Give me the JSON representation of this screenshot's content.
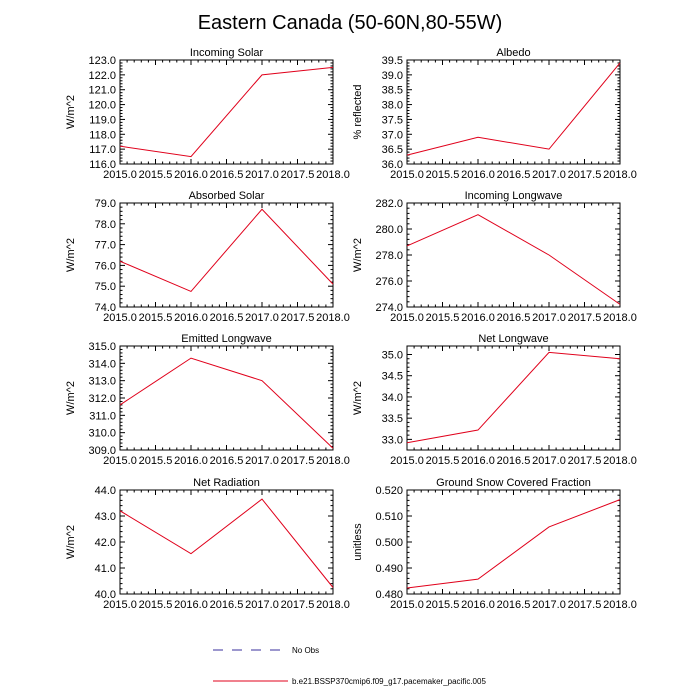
{
  "figure": {
    "title": "Eastern Canada (50-60N,80-55W)",
    "line_color": "#e0001b",
    "obs_color": "#3a2f9e",
    "axis_color": "#000000"
  },
  "legend": {
    "obs_label": "No Obs",
    "model_label": "b.e21.BSSP370cmip6.f09_g17.pacemaker_pacific.005"
  },
  "chart_data": [
    {
      "type": "line",
      "title": "Incoming Solar",
      "xlabel": "",
      "ylabel": "W/m^2",
      "x": [
        2015,
        2016,
        2017,
        2018
      ],
      "xlim": [
        2015,
        2018
      ],
      "xticks": [
        "2015.0",
        "2015.5",
        "2016.0",
        "2016.5",
        "2017.0",
        "2017.5",
        "2018.0"
      ],
      "ylim": [
        116,
        123
      ],
      "yticks": [
        "116.0",
        "117.0",
        "118.0",
        "119.0",
        "120.0",
        "121.0",
        "122.0",
        "123.0"
      ],
      "series": [
        {
          "name": "b.e21.BSSP370cmip6.f09_g17.pacemaker_pacific.005",
          "values": [
            117.2,
            116.5,
            122.0,
            122.5
          ]
        }
      ]
    },
    {
      "type": "line",
      "title": "Albedo",
      "xlabel": "",
      "ylabel": "% reflected",
      "x": [
        2015,
        2016,
        2017,
        2018
      ],
      "xlim": [
        2015,
        2018
      ],
      "xticks": [
        "2015.0",
        "2015.5",
        "2016.0",
        "2016.5",
        "2017.0",
        "2017.5",
        "2018.0"
      ],
      "ylim": [
        36,
        39.5
      ],
      "yticks": [
        "36.0",
        "36.5",
        "37.0",
        "37.5",
        "38.0",
        "38.5",
        "39.0",
        "39.5"
      ],
      "series": [
        {
          "name": "b.e21.BSSP370cmip6.f09_g17.pacemaker_pacific.005",
          "values": [
            36.3,
            36.9,
            36.5,
            39.4
          ]
        }
      ]
    },
    {
      "type": "line",
      "title": "Absorbed Solar",
      "xlabel": "",
      "ylabel": "W/m^2",
      "x": [
        2015,
        2016,
        2017,
        2018
      ],
      "xlim": [
        2015,
        2018
      ],
      "xticks": [
        "2015.0",
        "2015.5",
        "2016.0",
        "2016.5",
        "2017.0",
        "2017.5",
        "2018.0"
      ],
      "ylim": [
        74,
        79
      ],
      "yticks": [
        "74.0",
        "75.0",
        "76.0",
        "77.0",
        "78.0",
        "79.0"
      ],
      "series": [
        {
          "name": "b.e21.BSSP370cmip6.f09_g17.pacemaker_pacific.005",
          "values": [
            76.2,
            74.75,
            78.7,
            75.1
          ]
        }
      ]
    },
    {
      "type": "line",
      "title": "Incoming Longwave",
      "xlabel": "",
      "ylabel": "W/m^2",
      "x": [
        2015,
        2016,
        2017,
        2018
      ],
      "xlim": [
        2015,
        2018
      ],
      "xticks": [
        "2015.0",
        "2015.5",
        "2016.0",
        "2016.5",
        "2017.0",
        "2017.5",
        "2018.0"
      ],
      "ylim": [
        274,
        282
      ],
      "yticks": [
        "274.0",
        "276.0",
        "278.0",
        "280.0",
        "282.0"
      ],
      "series": [
        {
          "name": "b.e21.BSSP370cmip6.f09_g17.pacemaker_pacific.005",
          "values": [
            278.7,
            281.1,
            278.0,
            274.2
          ]
        }
      ]
    },
    {
      "type": "line",
      "title": "Emitted Longwave",
      "xlabel": "",
      "ylabel": "W/m^2",
      "x": [
        2015,
        2016,
        2017,
        2018
      ],
      "xlim": [
        2015,
        2018
      ],
      "xticks": [
        "2015.0",
        "2015.5",
        "2016.0",
        "2016.5",
        "2017.0",
        "2017.5",
        "2018.0"
      ],
      "ylim": [
        309,
        315
      ],
      "yticks": [
        "309.0",
        "310.0",
        "311.0",
        "312.0",
        "313.0",
        "314.0",
        "315.0"
      ],
      "series": [
        {
          "name": "b.e21.BSSP370cmip6.f09_g17.pacemaker_pacific.005",
          "values": [
            311.6,
            314.3,
            313.0,
            309.1
          ]
        }
      ]
    },
    {
      "type": "line",
      "title": "Net Longwave",
      "xlabel": "",
      "ylabel": "W/m^2",
      "x": [
        2015,
        2016,
        2017,
        2018
      ],
      "xlim": [
        2015,
        2018
      ],
      "xticks": [
        "2015.0",
        "2015.5",
        "2016.0",
        "2016.5",
        "2017.0",
        "2017.5",
        "2018.0"
      ],
      "ylim": [
        32.75,
        35.2
      ],
      "yticks": [
        "33.0",
        "33.5",
        "34.0",
        "34.5",
        "35.0"
      ],
      "ytick_values": [
        33.0,
        33.5,
        34.0,
        34.5,
        35.0
      ],
      "series": [
        {
          "name": "b.e21.BSSP370cmip6.f09_g17.pacemaker_pacific.005",
          "values": [
            32.92,
            33.22,
            35.05,
            34.9
          ]
        }
      ]
    },
    {
      "type": "line",
      "title": "Net Radiation",
      "xlabel": "",
      "ylabel": "W/m^2",
      "x": [
        2015,
        2016,
        2017,
        2018
      ],
      "xlim": [
        2015,
        2018
      ],
      "xticks": [
        "2015.0",
        "2015.5",
        "2016.0",
        "2016.5",
        "2017.0",
        "2017.5",
        "2018.0"
      ],
      "ylim": [
        40,
        44
      ],
      "yticks": [
        "40.0",
        "41.0",
        "42.0",
        "43.0",
        "44.0"
      ],
      "series": [
        {
          "name": "b.e21.BSSP370cmip6.f09_g17.pacemaker_pacific.005",
          "values": [
            43.2,
            41.55,
            43.65,
            40.25
          ]
        }
      ]
    },
    {
      "type": "line",
      "title": "Ground Snow Covered Fraction",
      "xlabel": "",
      "ylabel": "unitless",
      "x": [
        2015,
        2016,
        2017,
        2018
      ],
      "xlim": [
        2015,
        2018
      ],
      "xticks": [
        "2015.0",
        "2015.5",
        "2016.0",
        "2016.5",
        "2017.0",
        "2017.5",
        "2018.0"
      ],
      "ylim": [
        0.48,
        0.52
      ],
      "yticks": [
        "0.480",
        "0.490",
        "0.500",
        "0.510",
        "0.520"
      ],
      "series": [
        {
          "name": "b.e21.BSSP370cmip6.f09_g17.pacemaker_pacific.005",
          "values": [
            0.4823,
            0.4857,
            0.5058,
            0.5163
          ]
        }
      ]
    }
  ]
}
